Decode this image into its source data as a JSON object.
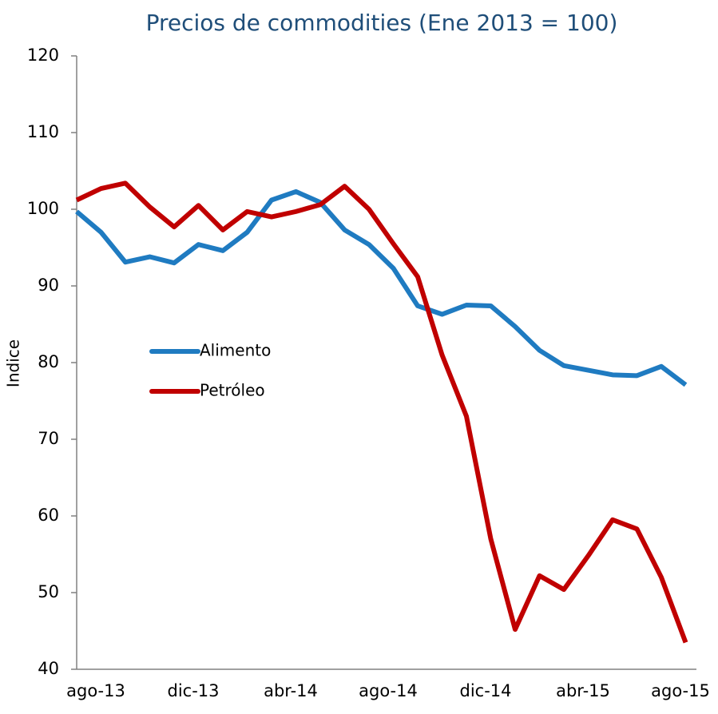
{
  "chart_data": {
    "type": "line",
    "title": "Precios de commodities (Ene 2013 = 100)",
    "y_label": "Indice",
    "categories": [
      "ago-13",
      null,
      null,
      null,
      "dic-13",
      null,
      null,
      null,
      "abr-14",
      null,
      null,
      null,
      "ago-14",
      null,
      null,
      null,
      "dic-14",
      null,
      null,
      null,
      "abr-15",
      null,
      null,
      null,
      "ago-15",
      null
    ],
    "series": [
      {
        "name": "Alimento",
        "color": "#1f7bc1",
        "values": [
          99.7,
          97,
          93.1,
          93.8,
          93,
          95.4,
          94.6,
          97,
          101.2,
          102.3,
          100.9,
          97.3,
          95.4,
          92.3,
          87.4,
          86.3,
          87.5,
          87.4,
          84.7,
          81.6,
          79.6,
          79,
          78.4,
          78.3,
          79.5,
          77.1
        ]
      },
      {
        "name": "Petróleo",
        "color": "#c00000",
        "values": [
          101.2,
          102.7,
          103.4,
          100.3,
          97.7,
          100.5,
          97.3,
          99.7,
          99,
          99.7,
          100.6,
          103,
          100,
          95.5,
          91.2,
          81,
          73,
          57,
          45.2,
          52.2,
          50.4,
          54.8,
          59.5,
          58.3,
          52,
          43.5
        ]
      }
    ],
    "ylim": [
      40,
      120
    ],
    "yticks": [
      40,
      50,
      60,
      70,
      80,
      90,
      100,
      110,
      120
    ]
  }
}
